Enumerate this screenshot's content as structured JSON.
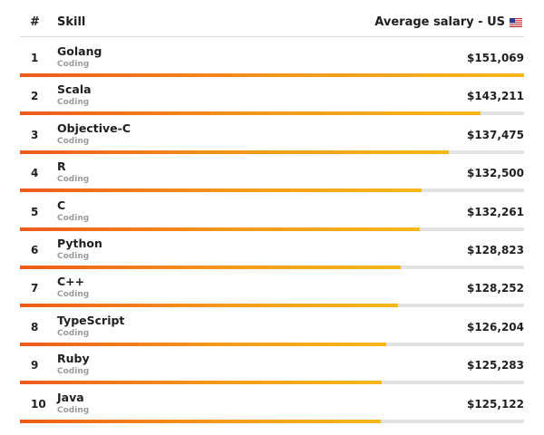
{
  "header": {
    "rank_label": "#",
    "skill_label": "Skill",
    "salary_label": "Average salary - US",
    "flag_icon": "us-flag-icon"
  },
  "colors": {
    "bar_start": "#ee5a1c",
    "bar_end": "#f6b71a",
    "track": "#e2e2e2"
  },
  "chart_data": {
    "type": "bar",
    "orientation": "horizontal",
    "categories": [
      "Golang",
      "Scala",
      "Objective-C",
      "R",
      "C",
      "Python",
      "C++",
      "TypeScript",
      "Ruby",
      "Java"
    ],
    "ranks": [
      "1",
      "2",
      "3",
      "4",
      "5",
      "6",
      "7",
      "8",
      "9",
      "10"
    ],
    "subtitles": [
      "Coding",
      "Coding",
      "Coding",
      "Coding",
      "Coding",
      "Coding",
      "Coding",
      "Coding",
      "Coding",
      "Coding"
    ],
    "values": [
      151069,
      143211,
      137475,
      132500,
      132261,
      128823,
      128252,
      126204,
      125283,
      125122
    ],
    "value_labels": [
      "$151,069",
      "$143,211",
      "$137,475",
      "$132,500",
      "$132,261",
      "$128,823",
      "$128,252",
      "$126,204",
      "$125,283",
      "$125,122"
    ],
    "xlim": [
      0,
      151069
    ]
  }
}
